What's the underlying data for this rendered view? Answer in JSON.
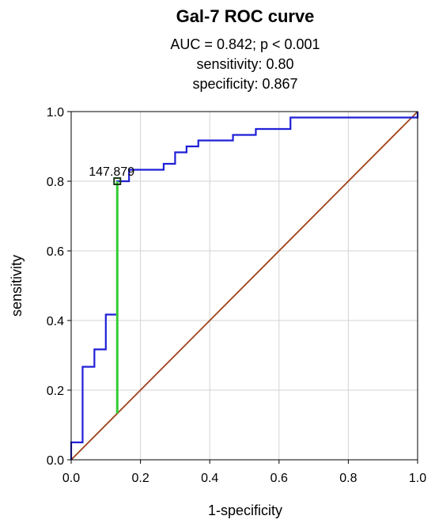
{
  "chart_data": {
    "type": "line",
    "title": "Gal-7 ROC curve",
    "subtitle_lines": [
      "AUC = 0.842; p < 0.001",
      "sensitivity: 0.80",
      "specificity: 0.867"
    ],
    "xlabel": "1-specificity",
    "ylabel": "sensitivity",
    "xlim": [
      0,
      1
    ],
    "ylim": [
      0,
      1
    ],
    "grid": true,
    "x_ticks": [
      "0.0",
      "0.2",
      "0.4",
      "0.6",
      "0.8",
      "1.0"
    ],
    "y_ticks": [
      "0.0",
      "0.2",
      "0.4",
      "0.6",
      "0.8",
      "1.0"
    ],
    "series": [
      {
        "color": "#1f1fd8",
        "points": [
          [
            0,
            0
          ],
          [
            0,
            0.05
          ],
          [
            0.033,
            0.05
          ],
          [
            0.033,
            0.267
          ],
          [
            0.067,
            0.267
          ],
          [
            0.067,
            0.317
          ],
          [
            0.1,
            0.317
          ],
          [
            0.1,
            0.417
          ],
          [
            0.133,
            0.417
          ],
          [
            0.133,
            0.8
          ],
          [
            0.167,
            0.8
          ],
          [
            0.167,
            0.833
          ],
          [
            0.267,
            0.833
          ],
          [
            0.267,
            0.85
          ],
          [
            0.3,
            0.85
          ],
          [
            0.3,
            0.883
          ],
          [
            0.333,
            0.883
          ],
          [
            0.333,
            0.9
          ],
          [
            0.367,
            0.9
          ],
          [
            0.367,
            0.917
          ],
          [
            0.467,
            0.917
          ],
          [
            0.467,
            0.933
          ],
          [
            0.533,
            0.933
          ],
          [
            0.533,
            0.95
          ],
          [
            0.633,
            0.95
          ],
          [
            0.633,
            0.983
          ],
          [
            1.0,
            0.983
          ],
          [
            1.0,
            1.0
          ]
        ]
      },
      {
        "color": "#a0431a",
        "points": [
          [
            0,
            0
          ],
          [
            1,
            1
          ]
        ]
      }
    ],
    "annotations": [
      {
        "label": "147.879",
        "x": 0.133,
        "y": 0.8,
        "marker_color": "#1a3a1a",
        "youden_line": {
          "x": 0.133,
          "y_from": 0.133,
          "y_to": 0.8,
          "color": "#33cc33"
        }
      }
    ]
  }
}
